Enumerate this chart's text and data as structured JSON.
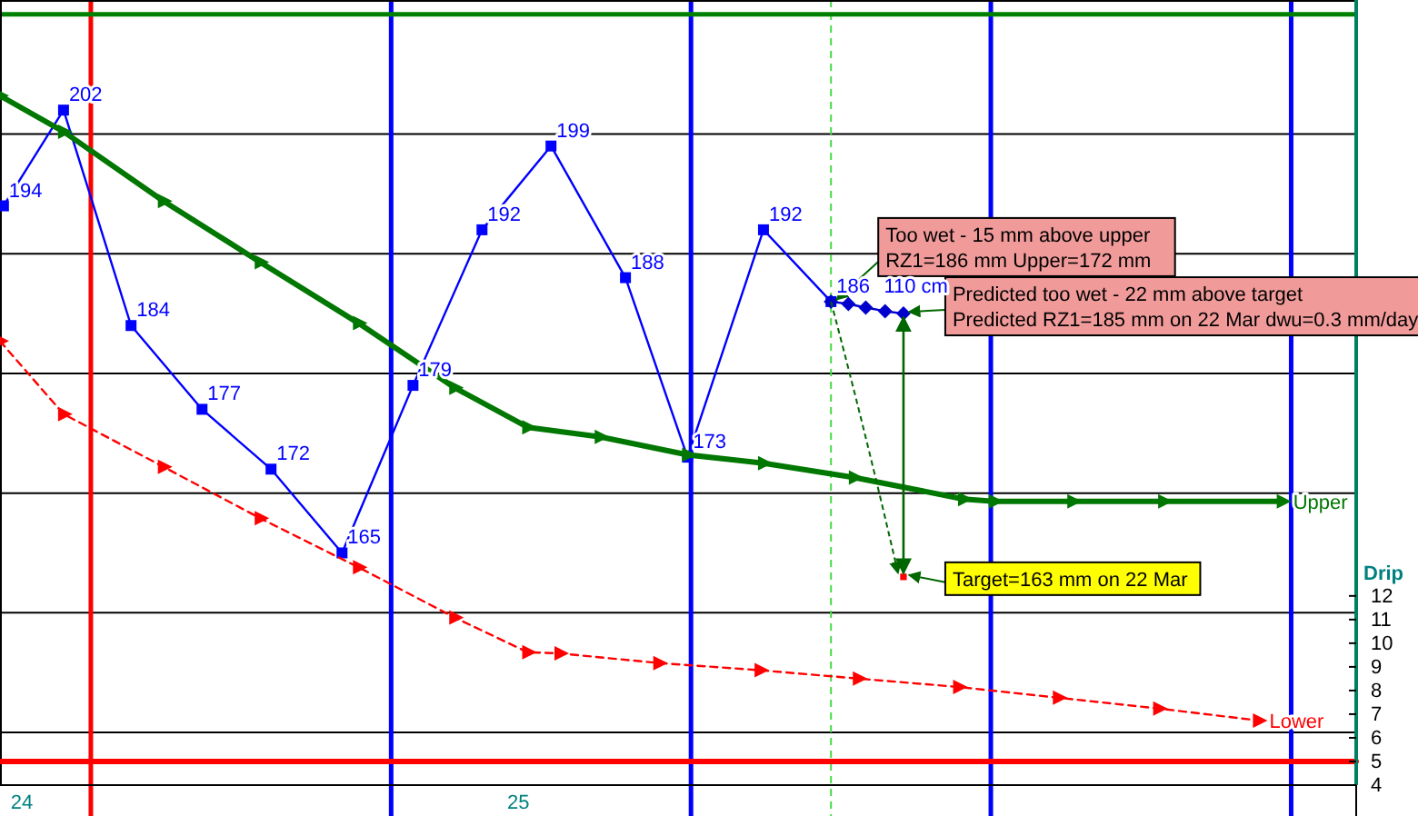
{
  "chart_data": {
    "type": "line",
    "xlim": [
      23.956,
      26.688
    ],
    "xticks": [
      24,
      25
    ],
    "ylim": [
      145.6,
      211.2
    ],
    "yticks": [
      {
        "value": 150,
        "label": null
      },
      {
        "value": 160,
        "label": null
      },
      {
        "value": 170,
        "label": null
      },
      {
        "value": 180,
        "label": null
      },
      {
        "value": 190,
        "label": null
      },
      {
        "value": 200,
        "label": null
      }
    ],
    "y2lim": [
      4,
      37.2
    ],
    "y2ticks": [
      4,
      5,
      6,
      7,
      8,
      9,
      10,
      11,
      12
    ],
    "y2label": "Drip",
    "grid": "y",
    "series": [
      {
        "color": "#0000ff",
        "marker": "square",
        "line_style": "solid",
        "x": [
          23.963,
          24.084,
          24.22,
          24.363,
          24.502,
          24.645,
          24.788,
          24.927,
          25.066,
          25.216,
          25.341,
          25.494,
          25.63
        ],
        "values": [
          194,
          202,
          184,
          177,
          172,
          165,
          179,
          192,
          199,
          188,
          173,
          192,
          186
        ],
        "value_labels": [
          "194",
          "202",
          "184",
          "177",
          "172",
          "165",
          "179",
          "192",
          "199",
          "188",
          "173",
          "192",
          "186"
        ]
      },
      {
        "color": "#0000cc",
        "marker": "diamond",
        "line_style": "solid",
        "x": [
          25.63,
          25.665,
          25.7,
          25.739,
          25.776
        ],
        "values": [
          186,
          185.8,
          185.5,
          185.2,
          185
        ]
      },
      {
        "name": "Upper",
        "color": "#007700",
        "marker": "triangle",
        "line_style": "solid",
        "x": [
          23.956,
          24.084,
          24.285,
          24.48,
          24.678,
          24.872,
          25.019,
          25.165,
          25.341,
          25.494,
          25.677,
          25.897,
          25.959,
          26.117,
          26.3,
          26.539
        ],
        "values": [
          203.2,
          200.2,
          194.4,
          189.3,
          184.2,
          178.8,
          175.5,
          174.7,
          173.2,
          172.5,
          171.3,
          169.5,
          169.3,
          169.3,
          169.3,
          169.3
        ]
      },
      {
        "name": "Lower",
        "color": "#ff0000",
        "marker": "triangle",
        "line_style": "dashed",
        "x": [
          23.956,
          24.084,
          24.285,
          24.48,
          24.678,
          24.872,
          25.019,
          25.084,
          25.283,
          25.487,
          25.685,
          25.887,
          26.088,
          26.29,
          26.491
        ],
        "values": [
          182.7,
          176.6,
          172.2,
          167.9,
          163.8,
          159.6,
          156.7,
          156.6,
          155.8,
          155.2,
          154.5,
          153.8,
          152.9,
          152.0,
          151.0
        ]
      },
      {
        "type": "scatter",
        "color": "#ff0000",
        "marker": "square",
        "x": [
          25.776
        ],
        "values": [
          163
        ]
      },
      {
        "axis": "y2",
        "color": "#ff0000",
        "line_style": "solid",
        "x": [
          23.956,
          26.688
        ],
        "values": [
          5,
          5
        ]
      }
    ],
    "ref_lines": [
      {
        "axis": "x",
        "value": 24.139,
        "color": "#ff0000"
      },
      {
        "axis": "x",
        "value": 24.744,
        "color": "#0000ff"
      },
      {
        "axis": "x",
        "value": 25.348,
        "color": "#0000ff"
      },
      {
        "axis": "x",
        "value": 25.952,
        "color": "#0000ff"
      },
      {
        "axis": "x",
        "value": 26.557,
        "color": "#0000ff"
      },
      {
        "axis": "x",
        "value": 25.63,
        "color": "#44dd44",
        "line_style": "dashed"
      },
      {
        "axis": "y",
        "value": 210,
        "color": "#008000"
      }
    ],
    "annotations": [
      {
        "text": "Too wet - 15 mm above upper\nRZ1=186 mm Upper=172 mm",
        "x": 25.63,
        "y": 186
      },
      {
        "text": "Predicted too wet - 22 mm above target\nPredicted RZ1=185 mm on 22 Mar dwu=0.3 mm/day",
        "x": 25.776,
        "y": 185
      },
      {
        "text": "Target=163 mm on 22 Mar",
        "x": 25.776,
        "y": 163
      },
      {
        "text": "110 cm",
        "x": 25.7,
        "y": 185.5
      }
    ]
  }
}
